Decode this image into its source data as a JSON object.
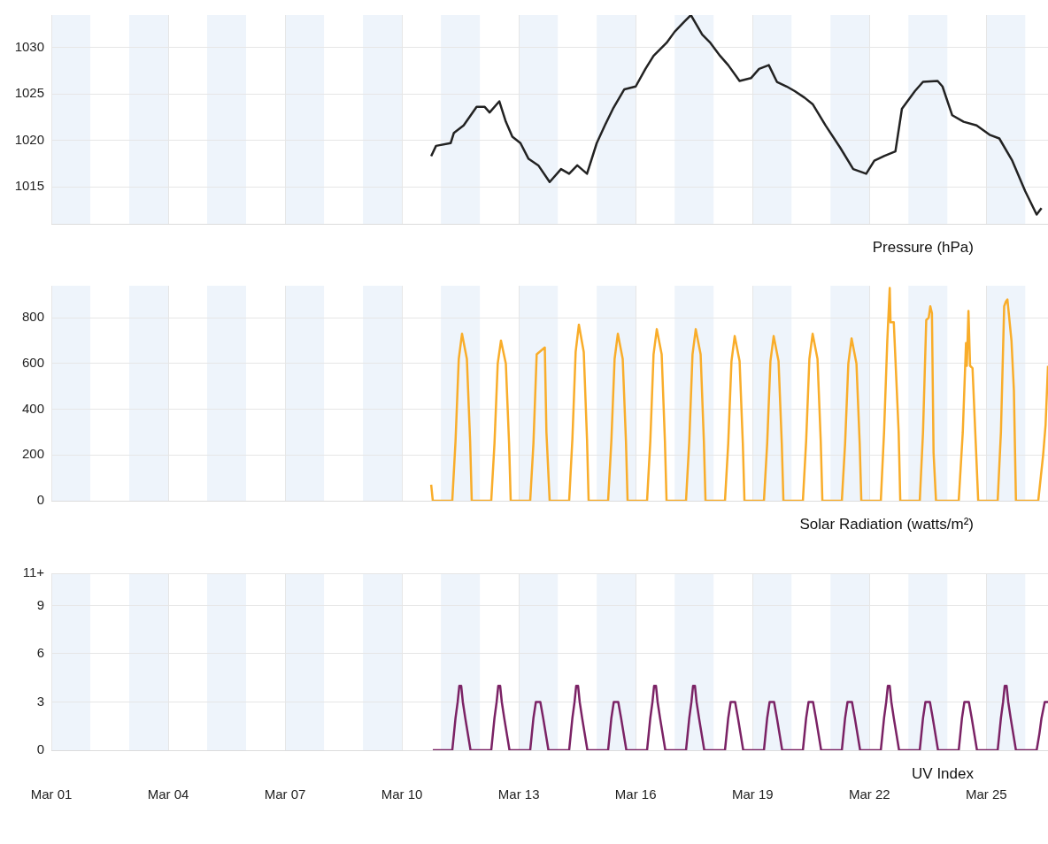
{
  "chart_data": [
    {
      "type": "line",
      "xlabel": "Pressure (hPa)",
      "xlim": [
        "--03-01T00:00",
        "--03-26T14:00"
      ],
      "ylim": [
        1011,
        1033.5
      ],
      "yticks": [
        1015,
        1020,
        1025,
        1030
      ],
      "xticks": [
        {
          "value": "--03-01",
          "label": null
        },
        {
          "value": "--03-04",
          "label": null
        },
        {
          "value": "--03-07",
          "label": null
        },
        {
          "value": "--03-10",
          "label": null
        },
        {
          "value": "--03-13",
          "label": null
        },
        {
          "value": "--03-16",
          "label": null
        },
        {
          "value": "--03-19",
          "label": null
        },
        {
          "value": "--03-22",
          "label": null
        },
        {
          "value": "--03-25",
          "label": null
        }
      ],
      "tick_labels": "y",
      "grid": true,
      "bands": [
        {
          "axis": "x",
          "from": "--03-01",
          "to": "--03-02",
          "color": "#eef4fb"
        },
        {
          "axis": "x",
          "from": "--03-03",
          "to": "--03-04",
          "color": "#eef4fb"
        },
        {
          "axis": "x",
          "from": "--03-05",
          "to": "--03-06",
          "color": "#eef4fb"
        },
        {
          "axis": "x",
          "from": "--03-07",
          "to": "--03-08",
          "color": "#eef4fb"
        },
        {
          "axis": "x",
          "from": "--03-09",
          "to": "--03-10",
          "color": "#eef4fb"
        },
        {
          "axis": "x",
          "from": "--03-11",
          "to": "--03-12",
          "color": "#eef4fb"
        },
        {
          "axis": "x",
          "from": "--03-13",
          "to": "--03-14",
          "color": "#eef4fb"
        },
        {
          "axis": "x",
          "from": "--03-15",
          "to": "--03-16",
          "color": "#eef4fb"
        },
        {
          "axis": "x",
          "from": "--03-17",
          "to": "--03-18",
          "color": "#eef4fb"
        },
        {
          "axis": "x",
          "from": "--03-19",
          "to": "--03-20",
          "color": "#eef4fb"
        },
        {
          "axis": "x",
          "from": "--03-21",
          "to": "--03-22",
          "color": "#eef4fb"
        },
        {
          "axis": "x",
          "from": "--03-23",
          "to": "--03-24",
          "color": "#eef4fb"
        },
        {
          "axis": "x",
          "from": "--03-25",
          "to": "--03-26",
          "color": "#eef4fb"
        }
      ],
      "series": [
        {
          "color": "#222222",
          "x": [
            "--03-10T18:00",
            "--03-10T21:00",
            "--03-11T06:00",
            "--03-11T08:00",
            "--03-11T14:00",
            "--03-11T22:00",
            "--03-12T03:00",
            "--03-12T06:00",
            "--03-12T12:00",
            "--03-12T16:00",
            "--03-12T20:00",
            "--03-13T01:00",
            "--03-13T06:00",
            "--03-13T12:00",
            "--03-13T19:00",
            "--03-14T02:00",
            "--03-14T07:00",
            "--03-14T12:00",
            "--03-14T18:00",
            "--03-15T00:00",
            "--03-15T05:00",
            "--03-15T10:00",
            "--03-15T17:00",
            "--03-16T00:00",
            "--03-16T06:00",
            "--03-16T11:00",
            "--03-16T19:00",
            "--03-17T00:00",
            "--03-17T06:00",
            "--03-17T10:00",
            "--03-17T17:00",
            "--03-17T22:00",
            "--03-18T04:00",
            "--03-18T09:00",
            "--03-18T16:00",
            "--03-18T23:00",
            "--03-19T04:00",
            "--03-19T10:00",
            "--03-19T15:00",
            "--03-19T21:00",
            "--03-20T02:00",
            "--03-20T08:00",
            "--03-20T13:00",
            "--03-20T21:00",
            "--03-21T06:00",
            "--03-21T14:00",
            "--03-21T22:00",
            "--03-22T03:00",
            "--03-22T09:00",
            "--03-22T16:00",
            "--03-22T20:00",
            "--03-23T04:00",
            "--03-23T09:00",
            "--03-23T18:00",
            "--03-23T21:00",
            "--03-24T03:00",
            "--03-24T10:00",
            "--03-24T18:00",
            "--03-25T02:00",
            "--03-25T08:00",
            "--03-25T16:00",
            "--03-26T00:00",
            "--03-26T07:00",
            "--03-26T10:00"
          ],
          "values": [
            1018.3,
            1019.4,
            1019.7,
            1020.8,
            1021.6,
            1023.6,
            1023.6,
            1023,
            1024.2,
            1022,
            1020.4,
            1019.7,
            1018,
            1017.3,
            1015.5,
            1016.9,
            1016.4,
            1017.3,
            1016.4,
            1019.7,
            1021.6,
            1023.4,
            1025.5,
            1025.8,
            1027.7,
            1029.1,
            1030.5,
            1031.7,
            1032.8,
            1033.5,
            1031.4,
            1030.5,
            1029.1,
            1028.1,
            1026.4,
            1026.7,
            1027.7,
            1028.1,
            1026.3,
            1025.8,
            1025.3,
            1024.6,
            1023.9,
            1021.6,
            1019.2,
            1016.9,
            1016.4,
            1017.8,
            1018.3,
            1018.8,
            1023.4,
            1025.3,
            1026.3,
            1026.4,
            1025.8,
            1022.7,
            1022,
            1021.6,
            1020.6,
            1020.2,
            1017.8,
            1014.5,
            1012,
            1012.7
          ]
        }
      ]
    },
    {
      "type": "line",
      "xlabel": "Solar Radiation (watts/m²)",
      "xlim": [
        "--03-01T00:00",
        "--03-26T14:00"
      ],
      "ylim": [
        0,
        940
      ],
      "yticks": [
        0,
        200,
        400,
        600,
        800
      ],
      "xticks": [
        {
          "value": "--03-01",
          "label": null
        },
        {
          "value": "--03-04",
          "label": null
        },
        {
          "value": "--03-07",
          "label": null
        },
        {
          "value": "--03-10",
          "label": null
        },
        {
          "value": "--03-13",
          "label": null
        },
        {
          "value": "--03-16",
          "label": null
        },
        {
          "value": "--03-19",
          "label": null
        },
        {
          "value": "--03-22",
          "label": null
        },
        {
          "value": "--03-25",
          "label": null
        }
      ],
      "tick_labels": "y",
      "grid": true,
      "bands": [
        {
          "axis": "x",
          "from": "--03-01",
          "to": "--03-02",
          "color": "#eef4fb"
        },
        {
          "axis": "x",
          "from": "--03-03",
          "to": "--03-04",
          "color": "#eef4fb"
        },
        {
          "axis": "x",
          "from": "--03-05",
          "to": "--03-06",
          "color": "#eef4fb"
        },
        {
          "axis": "x",
          "from": "--03-07",
          "to": "--03-08",
          "color": "#eef4fb"
        },
        {
          "axis": "x",
          "from": "--03-09",
          "to": "--03-10",
          "color": "#eef4fb"
        },
        {
          "axis": "x",
          "from": "--03-11",
          "to": "--03-12",
          "color": "#eef4fb"
        },
        {
          "axis": "x",
          "from": "--03-13",
          "to": "--03-14",
          "color": "#eef4fb"
        },
        {
          "axis": "x",
          "from": "--03-15",
          "to": "--03-16",
          "color": "#eef4fb"
        },
        {
          "axis": "x",
          "from": "--03-17",
          "to": "--03-18",
          "color": "#eef4fb"
        },
        {
          "axis": "x",
          "from": "--03-19",
          "to": "--03-20",
          "color": "#eef4fb"
        },
        {
          "axis": "x",
          "from": "--03-21",
          "to": "--03-22",
          "color": "#eef4fb"
        },
        {
          "axis": "x",
          "from": "--03-23",
          "to": "--03-24",
          "color": "#eef4fb"
        },
        {
          "axis": "x",
          "from": "--03-25",
          "to": "--03-26",
          "color": "#eef4fb"
        }
      ],
      "series": [
        {
          "color": "#f9ad2a",
          "x": [
            "--03-10T18:00",
            "--03-10T19:00",
            "--03-11T07:00",
            "--03-11T09:00",
            "--03-11T11:00",
            "--03-11T13:00",
            "--03-11T16:00",
            "--03-11T18:00",
            "--03-11T19:00",
            "--03-12T07:00",
            "--03-12T09:00",
            "--03-12T11:00",
            "--03-12T13:00",
            "--03-12T16:00",
            "--03-12T18:00",
            "--03-12T19:00",
            "--03-13T07:00",
            "--03-13T09:00",
            "--03-13T11:00",
            "--03-13T16:00",
            "--03-13T17:00",
            "--03-13T19:00",
            "--03-14T07:00",
            "--03-14T09:00",
            "--03-14T11:00",
            "--03-14T13:00",
            "--03-14T16:00",
            "--03-14T18:00",
            "--03-14T19:00",
            "--03-15T07:00",
            "--03-15T09:00",
            "--03-15T11:00",
            "--03-15T13:00",
            "--03-15T16:00",
            "--03-15T18:00",
            "--03-15T19:00",
            "--03-16T07:00",
            "--03-16T09:00",
            "--03-16T11:00",
            "--03-16T13:00",
            "--03-16T16:00",
            "--03-16T18:00",
            "--03-16T19:00",
            "--03-17T07:00",
            "--03-17T09:00",
            "--03-17T11:00",
            "--03-17T13:00",
            "--03-17T16:00",
            "--03-17T18:00",
            "--03-17T19:00",
            "--03-18T07:00",
            "--03-18T09:00",
            "--03-18T11:00",
            "--03-18T13:00",
            "--03-18T16:00",
            "--03-18T18:00",
            "--03-18T19:00",
            "--03-19T07:00",
            "--03-19T09:00",
            "--03-19T11:00",
            "--03-19T13:00",
            "--03-19T16:00",
            "--03-19T18:00",
            "--03-19T19:00",
            "--03-20T07:00",
            "--03-20T09:00",
            "--03-20T11:00",
            "--03-20T13:00",
            "--03-20T16:00",
            "--03-20T18:00",
            "--03-20T19:00",
            "--03-21T07:00",
            "--03-21T09:00",
            "--03-21T11:00",
            "--03-21T13:00",
            "--03-21T16:00",
            "--03-21T18:00",
            "--03-21T19:00",
            "--03-22T07:00",
            "--03-22T09:00",
            "--03-22T11:00",
            "--03-22T12:30",
            "--03-22T13:00",
            "--03-22T15:00",
            "--03-22T18:00",
            "--03-22T19:00",
            "--03-23T07:00",
            "--03-23T09:00",
            "--03-23T11:00",
            "--03-23T12:30",
            "--03-23T13:30",
            "--03-23T14:30",
            "--03-23T15:30",
            "--03-23T17:00",
            "--03-24T07:00",
            "--03-24T09:30",
            "--03-24T11:30",
            "--03-24T12:00",
            "--03-24T13:00",
            "--03-24T14:00",
            "--03-24T15:30",
            "--03-24T17:30",
            "--03-24T19:00",
            "--03-25T07:00",
            "--03-25T09:00",
            "--03-25T11:00",
            "--03-25T12:00",
            "--03-25T13:00",
            "--03-25T15:30",
            "--03-25T17:00",
            "--03-25T18:15",
            "--03-26T08:00",
            "--03-26T11:00",
            "--03-26T12:30",
            "--03-26T14:00"
          ],
          "values": [
            70,
            0,
            0,
            260,
            620,
            730,
            620,
            260,
            0,
            0,
            250,
            600,
            700,
            600,
            250,
            0,
            0,
            250,
            640,
            670,
            300,
            0,
            0,
            270,
            650,
            770,
            650,
            270,
            0,
            0,
            260,
            620,
            730,
            620,
            260,
            0,
            0,
            260,
            640,
            750,
            640,
            260,
            0,
            0,
            260,
            640,
            750,
            640,
            260,
            0,
            0,
            250,
            610,
            720,
            610,
            250,
            0,
            0,
            250,
            610,
            720,
            610,
            250,
            0,
            0,
            260,
            620,
            730,
            620,
            260,
            0,
            0,
            250,
            600,
            710,
            600,
            250,
            0,
            0,
            300,
            700,
            930,
            780,
            780,
            300,
            0,
            0,
            300,
            790,
            800,
            850,
            820,
            210,
            0,
            0,
            300,
            690,
            590,
            830,
            590,
            580,
            250,
            0,
            0,
            300,
            850,
            870,
            880,
            700,
            480,
            0,
            0,
            200,
            330,
            590
          ]
        }
      ]
    },
    {
      "type": "line",
      "xlabel": "UV Index",
      "xlim": [
        "--03-01T00:00",
        "--03-26T14:00"
      ],
      "ylim": [
        0,
        11
      ],
      "yticks": [
        0,
        3,
        6,
        9,
        {
          "value": 11,
          "label": "11+"
        }
      ],
      "xticks": [
        {
          "value": "--03-01",
          "label": "Mar 01"
        },
        {
          "value": "--03-04",
          "label": "Mar 04"
        },
        {
          "value": "--03-07",
          "label": "Mar 07"
        },
        {
          "value": "--03-10",
          "label": "Mar 10"
        },
        {
          "value": "--03-13",
          "label": "Mar 13"
        },
        {
          "value": "--03-16",
          "label": "Mar 16"
        },
        {
          "value": "--03-19",
          "label": "Mar 19"
        },
        {
          "value": "--03-22",
          "label": "Mar 22"
        },
        {
          "value": "--03-25",
          "label": "Mar 25"
        }
      ],
      "grid": true,
      "bands": [
        {
          "axis": "x",
          "from": "--03-01",
          "to": "--03-02",
          "color": "#eef4fb"
        },
        {
          "axis": "x",
          "from": "--03-03",
          "to": "--03-04",
          "color": "#eef4fb"
        },
        {
          "axis": "x",
          "from": "--03-05",
          "to": "--03-06",
          "color": "#eef4fb"
        },
        {
          "axis": "x",
          "from": "--03-07",
          "to": "--03-08",
          "color": "#eef4fb"
        },
        {
          "axis": "x",
          "from": "--03-09",
          "to": "--03-10",
          "color": "#eef4fb"
        },
        {
          "axis": "x",
          "from": "--03-11",
          "to": "--03-12",
          "color": "#eef4fb"
        },
        {
          "axis": "x",
          "from": "--03-13",
          "to": "--03-14",
          "color": "#eef4fb"
        },
        {
          "axis": "x",
          "from": "--03-15",
          "to": "--03-16",
          "color": "#eef4fb"
        },
        {
          "axis": "x",
          "from": "--03-17",
          "to": "--03-18",
          "color": "#eef4fb"
        },
        {
          "axis": "x",
          "from": "--03-19",
          "to": "--03-20",
          "color": "#eef4fb"
        },
        {
          "axis": "x",
          "from": "--03-21",
          "to": "--03-22",
          "color": "#eef4fb"
        },
        {
          "axis": "x",
          "from": "--03-23",
          "to": "--03-24",
          "color": "#eef4fb"
        },
        {
          "axis": "x",
          "from": "--03-25",
          "to": "--03-26",
          "color": "#eef4fb"
        }
      ],
      "series": [
        {
          "color": "#7b2265",
          "x": [
            "--03-10T19:00",
            "--03-11T07:00",
            "--03-11T08:00",
            "--03-11T09:00",
            "--03-11T10:20",
            "--03-11T11:20",
            "--03-11T12:30",
            "--03-11T13:30",
            "--03-11T15:00",
            "--03-11T18:15",
            "--03-12T07:00",
            "--03-12T08:00",
            "--03-12T09:00",
            "--03-12T10:20",
            "--03-12T11:20",
            "--03-12T12:30",
            "--03-12T13:30",
            "--03-12T15:00",
            "--03-12T18:15",
            "--03-13T07:00",
            "--03-13T08:00",
            "--03-13T09:00",
            "--03-13T10:30",
            "--03-13T13:15",
            "--03-13T15:00",
            "--03-13T18:15",
            "--03-14T07:00",
            "--03-14T08:00",
            "--03-14T09:00",
            "--03-14T10:20",
            "--03-14T11:20",
            "--03-14T12:30",
            "--03-14T13:30",
            "--03-14T15:00",
            "--03-14T18:15",
            "--03-15T07:00",
            "--03-15T08:00",
            "--03-15T09:00",
            "--03-15T10:30",
            "--03-15T13:15",
            "--03-15T15:00",
            "--03-15T18:15",
            "--03-16T07:00",
            "--03-16T08:00",
            "--03-16T09:00",
            "--03-16T10:20",
            "--03-16T11:20",
            "--03-16T12:30",
            "--03-16T13:30",
            "--03-16T15:00",
            "--03-16T18:15",
            "--03-17T07:00",
            "--03-17T08:00",
            "--03-17T09:00",
            "--03-17T10:20",
            "--03-17T11:20",
            "--03-17T12:30",
            "--03-17T13:30",
            "--03-17T15:00",
            "--03-17T18:15",
            "--03-18T07:00",
            "--03-18T08:00",
            "--03-18T09:00",
            "--03-18T10:30",
            "--03-18T13:15",
            "--03-18T15:00",
            "--03-18T18:15",
            "--03-19T07:00",
            "--03-19T08:00",
            "--03-19T09:00",
            "--03-19T10:30",
            "--03-19T13:15",
            "--03-19T15:00",
            "--03-19T18:15",
            "--03-20T07:00",
            "--03-20T08:00",
            "--03-20T09:00",
            "--03-20T10:30",
            "--03-20T13:15",
            "--03-20T15:00",
            "--03-20T18:15",
            "--03-21T07:00",
            "--03-21T08:00",
            "--03-21T09:00",
            "--03-21T10:30",
            "--03-21T13:15",
            "--03-21T15:00",
            "--03-21T18:15",
            "--03-22T07:00",
            "--03-22T08:00",
            "--03-22T09:00",
            "--03-22T10:20",
            "--03-22T11:20",
            "--03-22T12:30",
            "--03-22T13:30",
            "--03-22T15:00",
            "--03-22T18:15",
            "--03-23T07:00",
            "--03-23T08:00",
            "--03-23T09:00",
            "--03-23T10:30",
            "--03-23T13:15",
            "--03-23T15:00",
            "--03-23T18:15",
            "--03-24T07:00",
            "--03-24T08:00",
            "--03-24T09:00",
            "--03-24T10:30",
            "--03-24T13:15",
            "--03-24T15:00",
            "--03-24T18:15",
            "--03-25T07:00",
            "--03-25T08:00",
            "--03-25T09:00",
            "--03-25T10:20",
            "--03-25T11:20",
            "--03-25T12:30",
            "--03-25T13:30",
            "--03-25T15:00",
            "--03-25T18:15",
            "--03-26T07:00",
            "--03-26T08:40",
            "--03-26T10:00",
            "--03-26T12:00",
            "--03-26T14:00"
          ],
          "values": [
            0,
            0,
            1,
            2,
            3,
            4,
            4,
            3,
            2,
            0,
            0,
            1,
            2,
            3,
            4,
            4,
            3,
            2,
            0,
            0,
            1,
            2,
            3,
            3,
            2,
            0,
            0,
            1,
            2,
            3,
            4,
            4,
            3,
            2,
            0,
            0,
            1,
            2,
            3,
            3,
            2,
            0,
            0,
            1,
            2,
            3,
            4,
            4,
            3,
            2,
            0,
            0,
            1,
            2,
            3,
            4,
            4,
            3,
            2,
            0,
            0,
            1,
            2,
            3,
            3,
            2,
            0,
            0,
            1,
            2,
            3,
            3,
            2,
            0,
            0,
            1,
            2,
            3,
            3,
            2,
            0,
            0,
            1,
            2,
            3,
            3,
            2,
            0,
            0,
            1,
            2,
            3,
            4,
            4,
            3,
            2,
            0,
            0,
            1,
            2,
            3,
            3,
            2,
            0,
            0,
            1,
            2,
            3,
            3,
            2,
            0,
            0,
            1,
            2,
            3,
            4,
            4,
            3,
            2,
            0,
            0,
            1,
            2,
            3,
            3
          ]
        }
      ]
    }
  ]
}
